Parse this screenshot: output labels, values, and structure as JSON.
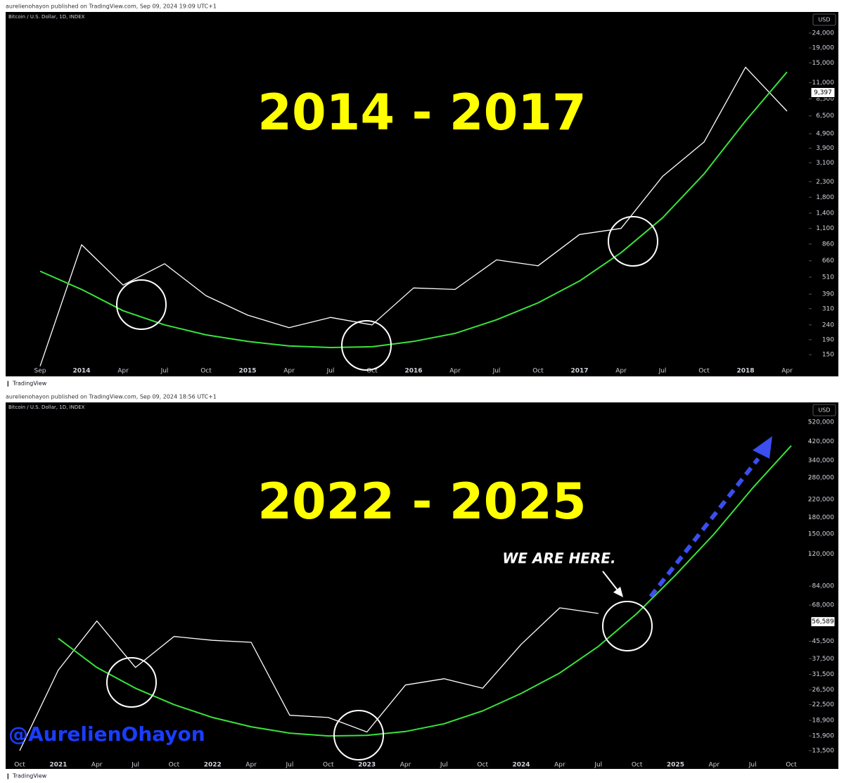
{
  "chart_data": [
    {
      "type": "line",
      "publisher": "aurelienohayon published on TradingView.com, Sep 09, 2024 19:09 UTC+1",
      "symbol": "Bitcoin / U.S. Dollar, 1D, INDEX",
      "currency": "USD",
      "title": "2014 - 2017",
      "footer": "TradingView",
      "log_scale": true,
      "categories": [
        "Sep",
        "2014",
        "Apr",
        "Jul",
        "Oct",
        "2015",
        "Apr",
        "Jul",
        "Oct",
        "2016",
        "Apr",
        "Jul",
        "Oct",
        "2017",
        "Apr",
        "Jul",
        "Oct",
        "2018",
        "Apr"
      ],
      "series": [
        {
          "color": "#ffffff",
          "values": [
            125,
            850,
            450,
            630,
            380,
            280,
            230,
            270,
            240,
            430,
            420,
            670,
            610,
            1000,
            1100,
            2500,
            4300,
            14000,
            7000
          ]
        },
        {
          "color": "#39e33b",
          "values": [
            560,
            420,
            300,
            240,
            205,
            185,
            172,
            168,
            170,
            185,
            210,
            260,
            340,
            480,
            750,
            1300,
            2600,
            6000,
            13000
          ]
        }
      ],
      "last_price": {
        "value": 9397,
        "label": "9,397"
      },
      "ylim": [
        133,
        33500
      ],
      "yticks": [
        150,
        190,
        240,
        310,
        390,
        510,
        660,
        860,
        {
          "value": 1100,
          "label": "1,100"
        },
        {
          "value": 1400,
          "label": "1,400"
        },
        {
          "value": 1800,
          "label": "1,800"
        },
        {
          "value": 2300,
          "label": "2,300"
        },
        {
          "value": 3100,
          "label": "3,100"
        },
        {
          "value": 3900,
          "label": "3,900"
        },
        {
          "value": 4900,
          "label": "4,900"
        },
        {
          "value": 6500,
          "label": "6,500"
        },
        {
          "value": 8500,
          "label": "8,500"
        },
        {
          "value": 11000,
          "label": "11,000"
        },
        {
          "value": 15000,
          "label": "15,000"
        },
        {
          "value": 19000,
          "label": "19,000"
        },
        {
          "value": 24000,
          "label": "24,000"
        }
      ]
    },
    {
      "type": "line",
      "publisher": "aurelienohayon published on TradingView.com, Sep 09, 2024 18:56 UTC+1",
      "symbol": "Bitcoin / U.S. Dollar, 1D, INDEX",
      "currency": "USD",
      "title": "2022 - 2025",
      "footer": "TradingView",
      "annotation": "WE ARE HERE.",
      "watermark": "@AurelienOhayon",
      "log_scale": true,
      "categories": [
        "Oct",
        "2021",
        "Apr",
        "Jul",
        "Oct",
        "2022",
        "Apr",
        "Jul",
        "Oct",
        "2023",
        "Apr",
        "Jul",
        "Oct",
        "2024",
        "Apr",
        "Jul",
        "Oct",
        "2025",
        "Apr",
        "Jul",
        "Oct"
      ],
      "series": [
        {
          "color": "#ffffff",
          "values": [
            13500,
            33000,
            57000,
            34000,
            48000,
            46000,
            45000,
            20000,
            19500,
            16600,
            28000,
            30000,
            27000,
            44000,
            66000,
            62000,
            null,
            null,
            null,
            null,
            null
          ]
        },
        {
          "color": "#39e33b",
          "values": [
            null,
            47000,
            34000,
            27000,
            22500,
            19500,
            17600,
            16400,
            15900,
            16000,
            16700,
            18200,
            21000,
            25500,
            32000,
            43000,
            62000,
            95000,
            150000,
            250000,
            400000
          ]
        }
      ],
      "last_price": {
        "value": 56589,
        "label": "56,589"
      },
      "ylim": [
        12680,
        562000
      ],
      "yticks": [
        {
          "value": 13500,
          "label": "13,500"
        },
        {
          "value": 15900,
          "label": "15,900"
        },
        {
          "value": 18900,
          "label": "18,900"
        },
        {
          "value": 22500,
          "label": "22,500"
        },
        {
          "value": 26500,
          "label": "26,500"
        },
        {
          "value": 31500,
          "label": "31,500"
        },
        {
          "value": 37500,
          "label": "37,500"
        },
        {
          "value": 45500,
          "label": "45,500"
        },
        {
          "value": 68000,
          "label": "68,000"
        },
        {
          "value": 84000,
          "label": "84,000"
        },
        {
          "value": 120000,
          "label": "120,000"
        },
        {
          "value": 150000,
          "label": "150,000"
        },
        {
          "value": 180000,
          "label": "180,000"
        },
        {
          "value": 220000,
          "label": "220,000"
        },
        {
          "value": 280000,
          "label": "280,000"
        },
        {
          "value": 340000,
          "label": "340,000"
        },
        {
          "value": 420000,
          "label": "420,000"
        },
        {
          "value": 520000,
          "label": "520,000"
        }
      ]
    }
  ]
}
